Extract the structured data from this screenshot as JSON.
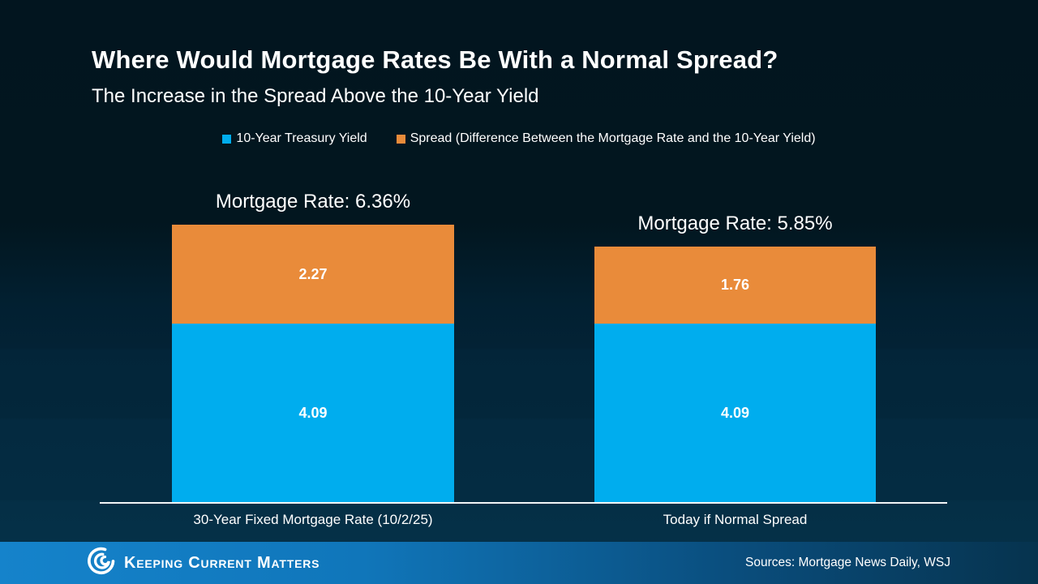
{
  "slide": {
    "title": "Where Would Mortgage Rates Be With a Normal Spread?",
    "subtitle": "The Increase in the Spread Above the 10-Year Yield"
  },
  "legend": {
    "items": [
      {
        "label": "10-Year Treasury Yield",
        "color": "#00ADEE"
      },
      {
        "label": "Spread (Difference Between the Mortgage Rate and the 10-Year Yield)",
        "color": "#E98B3A"
      }
    ]
  },
  "chart_data": {
    "type": "bar",
    "stacked": true,
    "title": "Where Would Mortgage Rates Be With a Normal Spread?",
    "subtitle": "The Increase in the Spread Above the 10-Year Yield",
    "categories": [
      "30-Year Fixed Mortgage Rate (10/2/25)",
      "Today if Normal Spread"
    ],
    "series": [
      {
        "name": "10-Year Treasury Yield",
        "color": "#00ADEE",
        "values": [
          4.09,
          4.09
        ]
      },
      {
        "name": "Spread (Difference Between the Mortgage Rate and the 10-Year Yield)",
        "color": "#E98B3A",
        "values": [
          2.27,
          1.76
        ]
      }
    ],
    "totals": [
      6.36,
      5.85
    ],
    "ylim": [
      0,
      6.36
    ],
    "grid": false,
    "legend_position": "top"
  },
  "bars": [
    {
      "rate_label": "Mortgage Rate: 6.36%",
      "spread_value": "2.27",
      "yield_value": "4.09"
    },
    {
      "rate_label": "Mortgage Rate: 5.85%",
      "spread_value": "1.76",
      "yield_value": "4.09"
    }
  ],
  "footer": {
    "brand": "Keeping Current Matters",
    "sources": "Sources: Mortgage News Daily, WSJ"
  },
  "colors": {
    "background_top": "#02151F",
    "background_bottom": "#053149",
    "bar_blue": "#00ADEE",
    "bar_orange": "#E98B3A",
    "footer_gradient_left": "#1583CB",
    "footer_gradient_right": "#06334E",
    "axis_line": "#F2F5F7",
    "text": "#FFFFFF"
  }
}
